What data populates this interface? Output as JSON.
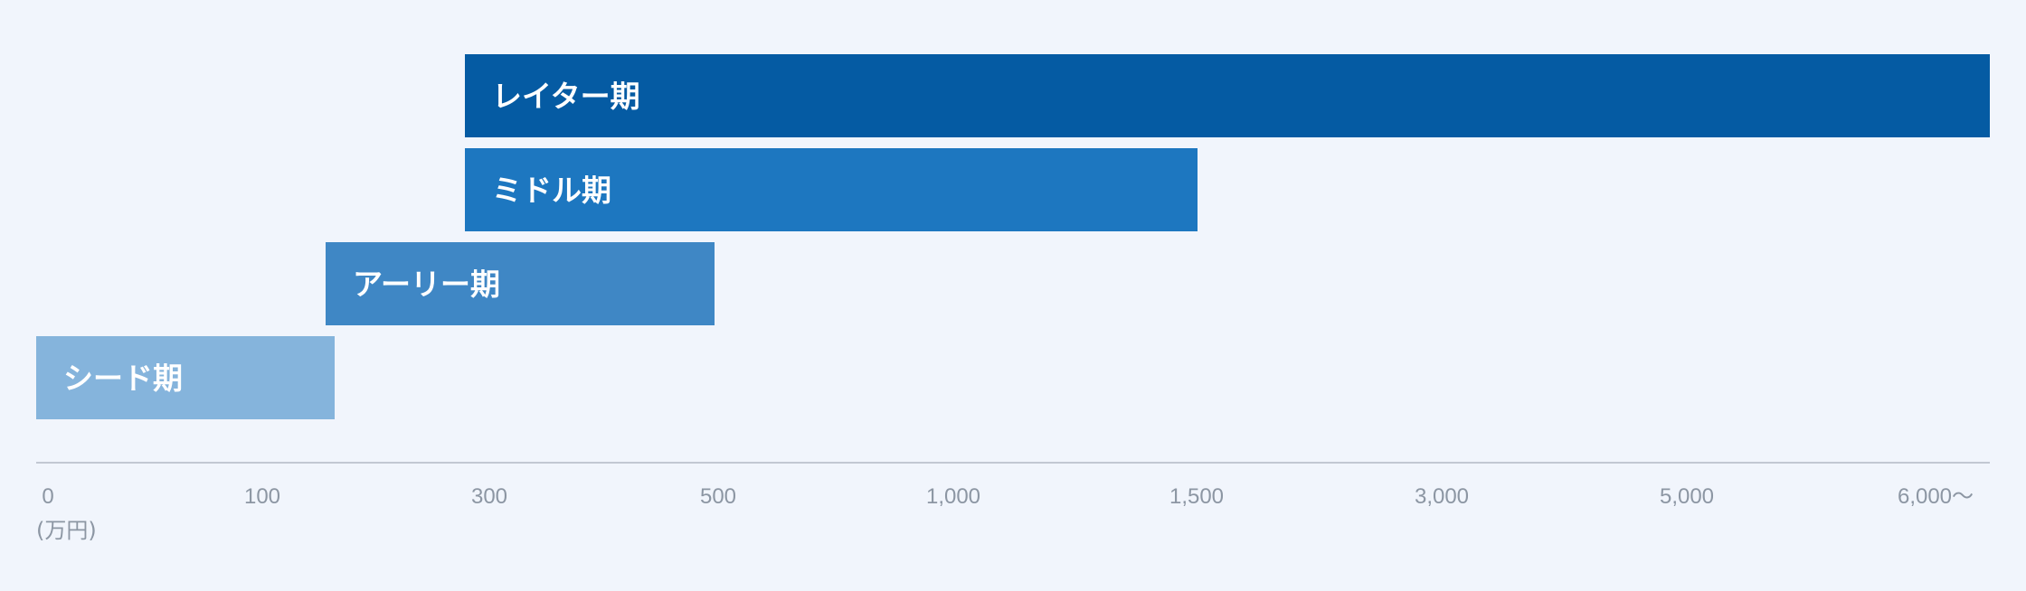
{
  "chart_data": {
    "type": "bar",
    "orientation": "horizontal-range",
    "x_ticks": [
      "0",
      "100",
      "300",
      "500",
      "1,000",
      "1,500",
      "3,000",
      "5,000",
      "6,000～"
    ],
    "x_unit": "(万円)",
    "series": [
      {
        "name": "レイター期",
        "start": "300",
        "end": "6,000～",
        "color": "#055ba3"
      },
      {
        "name": "ミドル期",
        "start": "300",
        "end": "1,500",
        "color": "#1d77c0"
      },
      {
        "name": "アーリー期",
        "start": "150",
        "end": "500",
        "color": "#3f87c5"
      },
      {
        "name": "シード期",
        "start": "0",
        "end": "150",
        "color": "#85b4dc"
      }
    ],
    "axis_color": "#c2c8d2",
    "background": "#f1f5fc"
  }
}
